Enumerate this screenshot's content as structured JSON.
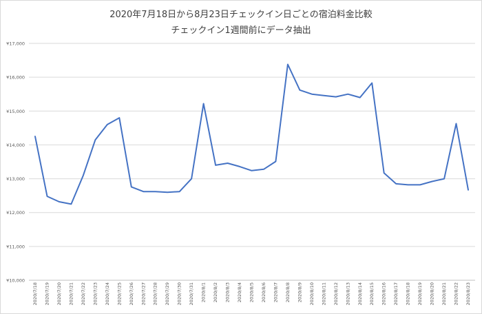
{
  "chart_data": {
    "type": "line",
    "title": "2020年7月18日から8月23日チェックイン日ごとの宿泊料金比較",
    "subtitle": "チェックイン1週間前にデータ抽出",
    "xlabel": "",
    "ylabel": "",
    "ylim": [
      10000,
      17000
    ],
    "yticks": [
      10000,
      11000,
      12000,
      13000,
      14000,
      15000,
      16000,
      17000
    ],
    "ytick_labels": [
      "¥10,000",
      "¥11,000",
      "¥12,000",
      "¥13,000",
      "¥14,000",
      "¥15,000",
      "¥16,000",
      "¥17,000"
    ],
    "grid": true,
    "legend": "none",
    "series_color": "#4472c4",
    "categories": [
      "2020/7/18",
      "2020/7/19",
      "2020/7/20",
      "2020/7/21",
      "2020/7/22",
      "2020/7/23",
      "2020/7/24",
      "2020/7/25",
      "2020/7/26",
      "2020/7/27",
      "2020/7/28",
      "2020/7/29",
      "2020/7/30",
      "2020/7/31",
      "2020/8/1",
      "2020/8/2",
      "2020/8/3",
      "2020/8/4",
      "2020/8/5",
      "2020/8/6",
      "2020/8/7",
      "2020/8/8",
      "2020/8/9",
      "2020/8/10",
      "2020/8/11",
      "2020/8/12",
      "2020/8/13",
      "2020/8/14",
      "2020/8/15",
      "2020/8/16",
      "2020/8/17",
      "2020/8/18",
      "2020/8/19",
      "2020/8/20",
      "2020/8/21",
      "2020/8/22",
      "2020/8/23"
    ],
    "series": [
      {
        "values": [
          14250,
          12480,
          12320,
          12250,
          13100,
          14150,
          14600,
          14800,
          12760,
          12620,
          12620,
          12600,
          12620,
          13000,
          15220,
          13400,
          13460,
          13360,
          13240,
          13280,
          13510,
          16380,
          15620,
          15500,
          15460,
          15420,
          15500,
          15400,
          15830,
          13170,
          12850,
          12820,
          12820,
          12920,
          13000,
          14630,
          12670
        ]
      }
    ]
  }
}
